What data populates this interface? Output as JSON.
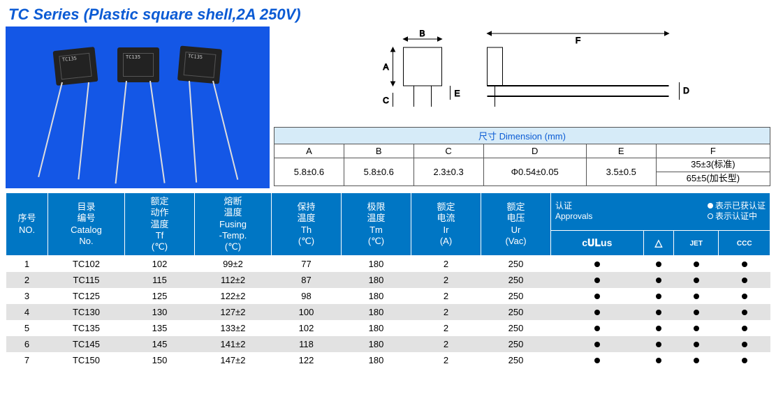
{
  "title": "TC Series (Plastic square shell,2A 250V)",
  "component_label": "TC135",
  "dimension": {
    "header": "尺寸  Dimension (mm)",
    "cols": [
      "A",
      "B",
      "C",
      "D",
      "E",
      "F"
    ],
    "vals": {
      "A": "5.8±0.6",
      "B": "5.8±0.6",
      "C": "2.3±0.3",
      "D": "Φ0.54±0.05",
      "E": "3.5±0.5",
      "F1": "35±3(标准)",
      "F2": "65±5(加长型)"
    }
  },
  "main_head": {
    "no": "序号\nNO.",
    "cat": "目录\n编号\nCatalog\nNo.",
    "tf": "额定\n动作\n温度\nTf\n(℃)",
    "fus": "熔断\n温度\nFusing\n-Temp.\n(℃)",
    "th": "保持\n温度\nTh\n(℃)",
    "tm": "极限\n温度\nTm\n(℃)",
    "ir": "额定\n电流\nIr\n(A)",
    "ur": "额定\n电压\nUr\n(Vac)",
    "appr_label": "认证\nApprovals",
    "legend_ok": "表示已获认证",
    "legend_ing": "表示认证中",
    "cert_icons": [
      "c𝐔𝐋us",
      "△",
      "JET",
      "CCC"
    ]
  },
  "rows": [
    {
      "no": "1",
      "cat": "TC102",
      "tf": "102",
      "fus": "99±2",
      "th": "77",
      "tm": "180",
      "ir": "2",
      "ur": "250",
      "c": [
        1,
        1,
        1,
        1
      ]
    },
    {
      "no": "2",
      "cat": "TC115",
      "tf": "115",
      "fus": "112±2",
      "th": "87",
      "tm": "180",
      "ir": "2",
      "ur": "250",
      "c": [
        1,
        1,
        1,
        1
      ]
    },
    {
      "no": "3",
      "cat": "TC125",
      "tf": "125",
      "fus": "122±2",
      "th": "98",
      "tm": "180",
      "ir": "2",
      "ur": "250",
      "c": [
        1,
        1,
        1,
        1
      ]
    },
    {
      "no": "4",
      "cat": "TC130",
      "tf": "130",
      "fus": "127±2",
      "th": "100",
      "tm": "180",
      "ir": "2",
      "ur": "250",
      "c": [
        1,
        1,
        1,
        1
      ]
    },
    {
      "no": "5",
      "cat": "TC135",
      "tf": "135",
      "fus": "133±2",
      "th": "102",
      "tm": "180",
      "ir": "2",
      "ur": "250",
      "c": [
        1,
        1,
        1,
        1
      ]
    },
    {
      "no": "6",
      "cat": "TC145",
      "tf": "145",
      "fus": "141±2",
      "th": "118",
      "tm": "180",
      "ir": "2",
      "ur": "250",
      "c": [
        1,
        1,
        1,
        1
      ]
    },
    {
      "no": "7",
      "cat": "TC150",
      "tf": "150",
      "fus": "147±2",
      "th": "122",
      "tm": "180",
      "ir": "2",
      "ur": "250",
      "c": [
        1,
        1,
        1,
        1
      ]
    }
  ],
  "colors": {
    "header_bg": "#0076c4",
    "row_even": "#e2e2e2",
    "row_odd": "#ffffff",
    "title": "#0b5bd4",
    "dim_header_bg": "#d6ebf8"
  }
}
